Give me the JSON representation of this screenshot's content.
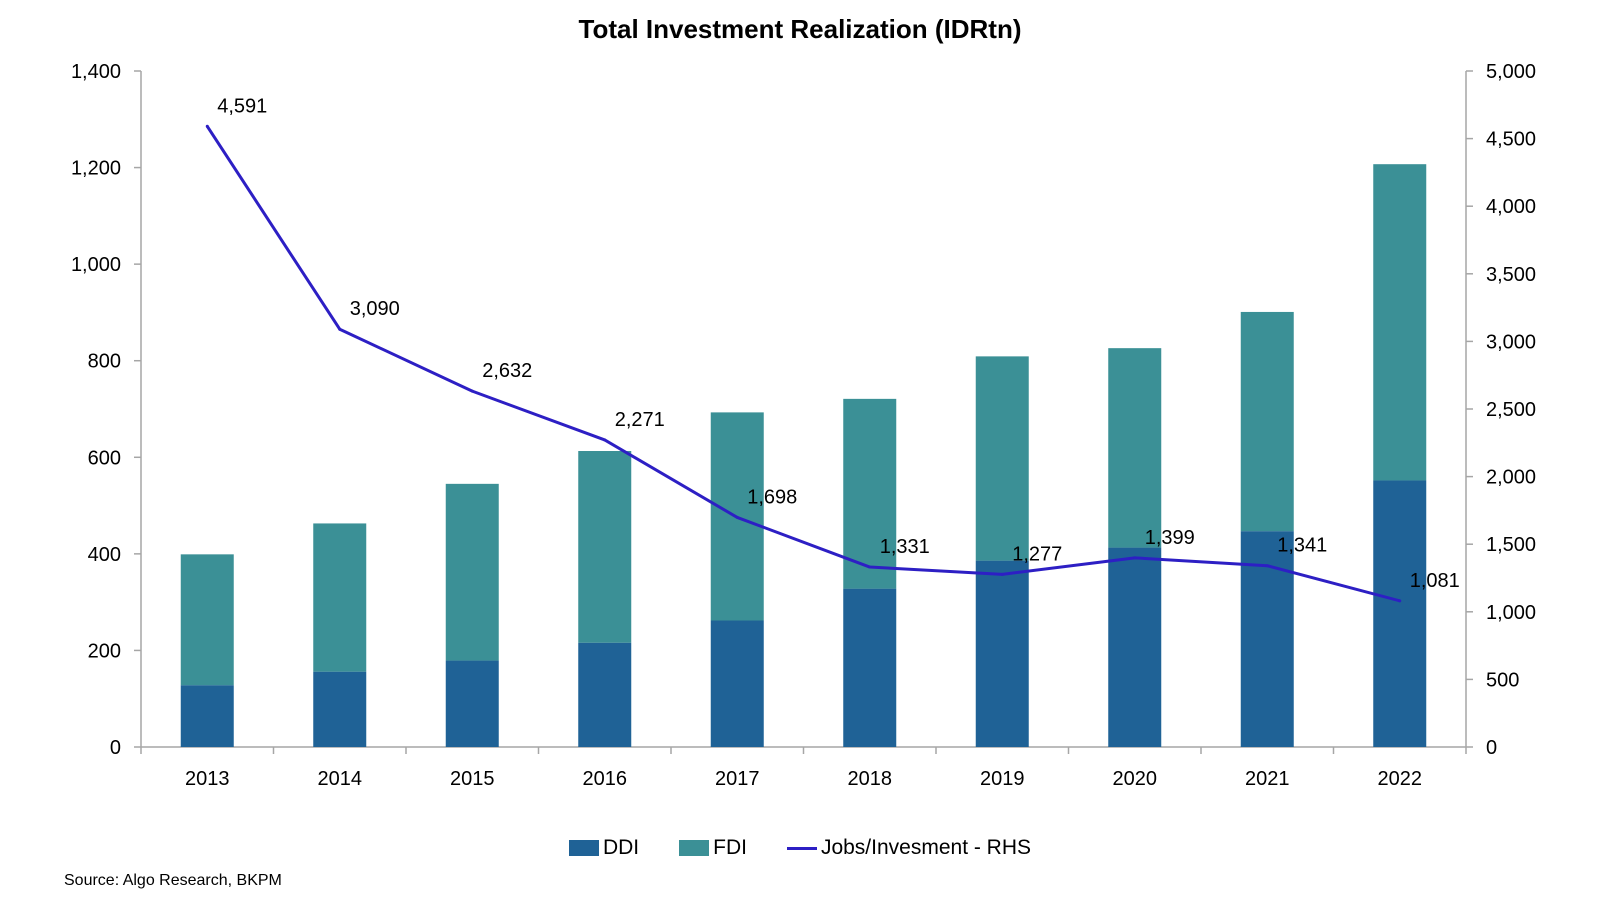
{
  "chart_data": {
    "type": "bar",
    "title": "Total Investment Realization (IDRtn)",
    "categories": [
      "2013",
      "2014",
      "2015",
      "2016",
      "2017",
      "2018",
      "2019",
      "2020",
      "2021",
      "2022"
    ],
    "series": [
      {
        "name": "DDI",
        "kind": "stacked-bar",
        "axis": "left",
        "color": "#1f6296",
        "values": [
          128,
          156,
          179,
          216,
          262,
          328,
          386,
          413,
          447,
          552
        ]
      },
      {
        "name": "FDI",
        "kind": "stacked-bar",
        "axis": "left",
        "color": "#3b9096",
        "values": [
          271,
          307,
          366,
          397,
          431,
          393,
          423,
          413,
          454,
          655
        ]
      },
      {
        "name": "Jobs/Invesment - RHS",
        "kind": "line",
        "axis": "right",
        "color": "#2d1fc4",
        "values": [
          4591,
          3090,
          2632,
          2271,
          1698,
          1331,
          1277,
          1399,
          1341,
          1081
        ],
        "labels": [
          "4,591",
          "3,090",
          "2,632",
          "2,271",
          "1,698",
          "1,331",
          "1,277",
          "1,399",
          "1,341",
          "1,081"
        ]
      }
    ],
    "y_left": {
      "range": [
        0,
        1400
      ],
      "ticks": [
        "0",
        "200",
        "400",
        "600",
        "800",
        "1,000",
        "1,200",
        "1,400"
      ]
    },
    "y_right": {
      "range": [
        0,
        5000
      ],
      "ticks": [
        "0",
        "500",
        "1,000",
        "1,500",
        "2,000",
        "2,500",
        "3,000",
        "3,500",
        "4,000",
        "4,500",
        "5,000"
      ]
    },
    "grid": false,
    "legend_position": "bottom-center",
    "source": "Source: Algo Research, BKPM"
  }
}
